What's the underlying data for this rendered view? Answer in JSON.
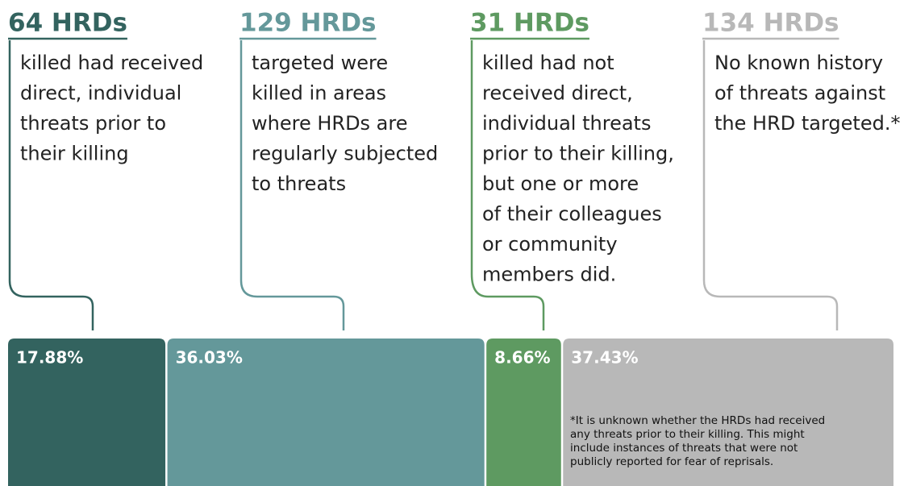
{
  "chart_data": {
    "type": "stacked-bar",
    "xlim": [
      0,
      100
    ],
    "series": [
      {
        "name": "64 HRDs",
        "color": "#33635f",
        "values": [
          17.88
        ],
        "value_labels": [
          "17.88%"
        ],
        "description": [
          "killed had received",
          "direct, individual",
          "threats prior to",
          "their killing"
        ]
      },
      {
        "name": "129 HRDs",
        "color": "#64989a",
        "values": [
          36.03
        ],
        "value_labels": [
          "36.03%"
        ],
        "description": [
          "targeted were",
          "killed in areas",
          "where HRDs are",
          "regularly subjected",
          "to threats"
        ]
      },
      {
        "name": "31 HRDs",
        "color": "#5e9a61",
        "values": [
          8.66
        ],
        "value_labels": [
          "8.66%"
        ],
        "description": [
          "killed had not",
          "received direct,",
          "individual threats",
          "prior to their killing,",
          "but one or more",
          "of their colleagues",
          "or community",
          "members did."
        ]
      },
      {
        "name": "134 HRDs",
        "color": "#b8b8b8",
        "values": [
          37.43
        ],
        "value_labels": [
          "37.43%"
        ],
        "description": [
          "No known history",
          "of threats against",
          "the HRD targeted.*"
        ]
      }
    ],
    "footnote": [
      "*It is unknown whether the HRDs had received",
      "any threats prior to their killing. This might",
      "include instances of threats that were not",
      "publicly reported for fear of reprisals."
    ]
  }
}
